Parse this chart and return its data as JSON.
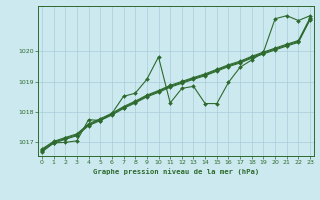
{
  "background_color": "#cce9f0",
  "grid_color": "#aacdd8",
  "line_color": "#2d6a2d",
  "marker_color": "#2d6a2d",
  "title": "Graphe pression niveau de la mer (hPa)",
  "xlim": [
    0,
    23
  ],
  "ylim": [
    1016.55,
    1021.5
  ],
  "yticks": [
    1017,
    1018,
    1019,
    1020
  ],
  "xticks": [
    0,
    1,
    2,
    3,
    4,
    5,
    6,
    7,
    8,
    9,
    10,
    11,
    12,
    13,
    14,
    15,
    16,
    17,
    18,
    19,
    20,
    21,
    22,
    23
  ],
  "band1": [
    1016.72,
    1016.97,
    1017.1,
    1017.22,
    1017.55,
    1017.72,
    1017.9,
    1018.12,
    1018.3,
    1018.5,
    1018.65,
    1018.82,
    1018.95,
    1019.08,
    1019.2,
    1019.35,
    1019.5,
    1019.62,
    1019.78,
    1019.92,
    1020.05,
    1020.18,
    1020.3,
    1021.05
  ],
  "band2": [
    1016.75,
    1017.0,
    1017.13,
    1017.25,
    1017.58,
    1017.75,
    1017.93,
    1018.15,
    1018.33,
    1018.53,
    1018.68,
    1018.85,
    1018.98,
    1019.11,
    1019.23,
    1019.38,
    1019.53,
    1019.65,
    1019.81,
    1019.95,
    1020.08,
    1020.21,
    1020.33,
    1021.08
  ],
  "band3": [
    1016.78,
    1017.03,
    1017.16,
    1017.28,
    1017.61,
    1017.78,
    1017.96,
    1018.18,
    1018.36,
    1018.56,
    1018.71,
    1018.88,
    1019.01,
    1019.14,
    1019.26,
    1019.41,
    1019.56,
    1019.68,
    1019.84,
    1019.98,
    1020.11,
    1020.24,
    1020.36,
    1021.11
  ],
  "main_line": [
    1016.68,
    1016.98,
    1017.0,
    1017.05,
    1017.75,
    1017.72,
    1017.95,
    1018.52,
    1018.62,
    1019.08,
    1019.82,
    1018.3,
    1018.78,
    1018.85,
    1018.28,
    1018.28,
    1018.98,
    1019.48,
    1019.72,
    1019.98,
    1021.08,
    1021.18,
    1021.02,
    1021.18
  ]
}
